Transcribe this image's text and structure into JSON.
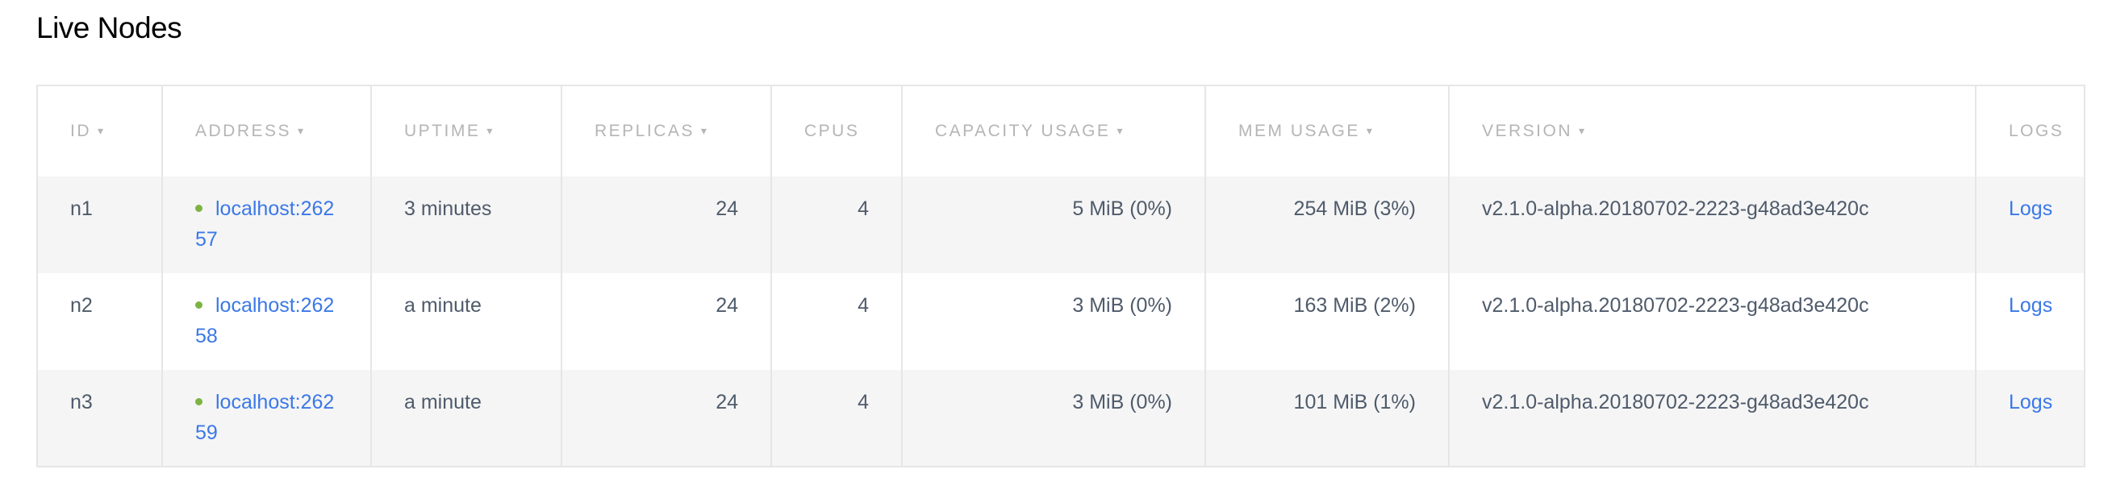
{
  "title": "Live Nodes",
  "colors": {
    "link": "#3b78e7",
    "status_live": "#7cb342",
    "header_text": "#b5b5b5",
    "row_alt": "#f5f5f5"
  },
  "columns": [
    {
      "label": "ID",
      "sortable": true
    },
    {
      "label": "Address",
      "sortable": true
    },
    {
      "label": "Uptime",
      "sortable": true
    },
    {
      "label": "Replicas",
      "sortable": true
    },
    {
      "label": "CPUs",
      "sortable": false
    },
    {
      "label": "Capacity Usage",
      "sortable": true
    },
    {
      "label": "Mem Usage",
      "sortable": true
    },
    {
      "label": "Version",
      "sortable": true
    },
    {
      "label": "Logs",
      "sortable": false
    }
  ],
  "sort_icon": "▾",
  "rows": [
    {
      "id": "n1",
      "address": "localhost:26257",
      "status": "live",
      "uptime": "3 minutes",
      "replicas": "24",
      "cpus": "4",
      "capacity_usage": "5 MiB (0%)",
      "mem_usage": "254 MiB (3%)",
      "version": "v2.1.0-alpha.20180702-2223-g48ad3e420c",
      "logs": "Logs"
    },
    {
      "id": "n2",
      "address": "localhost:26258",
      "status": "live",
      "uptime": "a minute",
      "replicas": "24",
      "cpus": "4",
      "capacity_usage": "3 MiB (0%)",
      "mem_usage": "163 MiB (2%)",
      "version": "v2.1.0-alpha.20180702-2223-g48ad3e420c",
      "logs": "Logs"
    },
    {
      "id": "n3",
      "address": "localhost:26259",
      "status": "live",
      "uptime": "a minute",
      "replicas": "24",
      "cpus": "4",
      "capacity_usage": "3 MiB (0%)",
      "mem_usage": "101 MiB (1%)",
      "version": "v2.1.0-alpha.20180702-2223-g48ad3e420c",
      "logs": "Logs"
    }
  ]
}
